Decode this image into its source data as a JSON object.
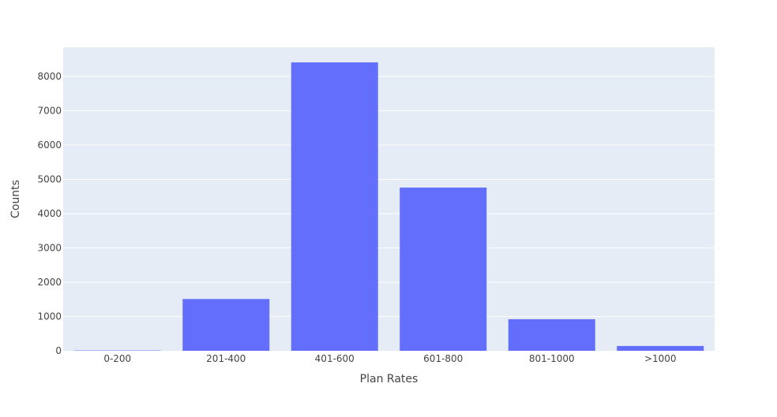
{
  "chart_data": {
    "type": "bar",
    "categories": [
      "0-200",
      "201-400",
      "401-600",
      "601-800",
      "801-1000",
      ">1000"
    ],
    "values": [
      10,
      1510,
      8410,
      4760,
      920,
      140
    ],
    "xlabel": "Plan Rates",
    "ylabel": "Counts",
    "ylim": [
      0,
      8850
    ],
    "yticks": [
      0,
      1000,
      2000,
      3000,
      4000,
      5000,
      6000,
      7000,
      8000
    ],
    "ytick_labels": [
      "0",
      "1000",
      "2000",
      "3000",
      "4000",
      "5000",
      "6000",
      "7000",
      "8000"
    ],
    "grid": true,
    "legend": false
  },
  "colors": {
    "plot_background": "#E5ECF6",
    "grid": "#ffffff",
    "bar": "#636EFA",
    "text": "#444444"
  }
}
